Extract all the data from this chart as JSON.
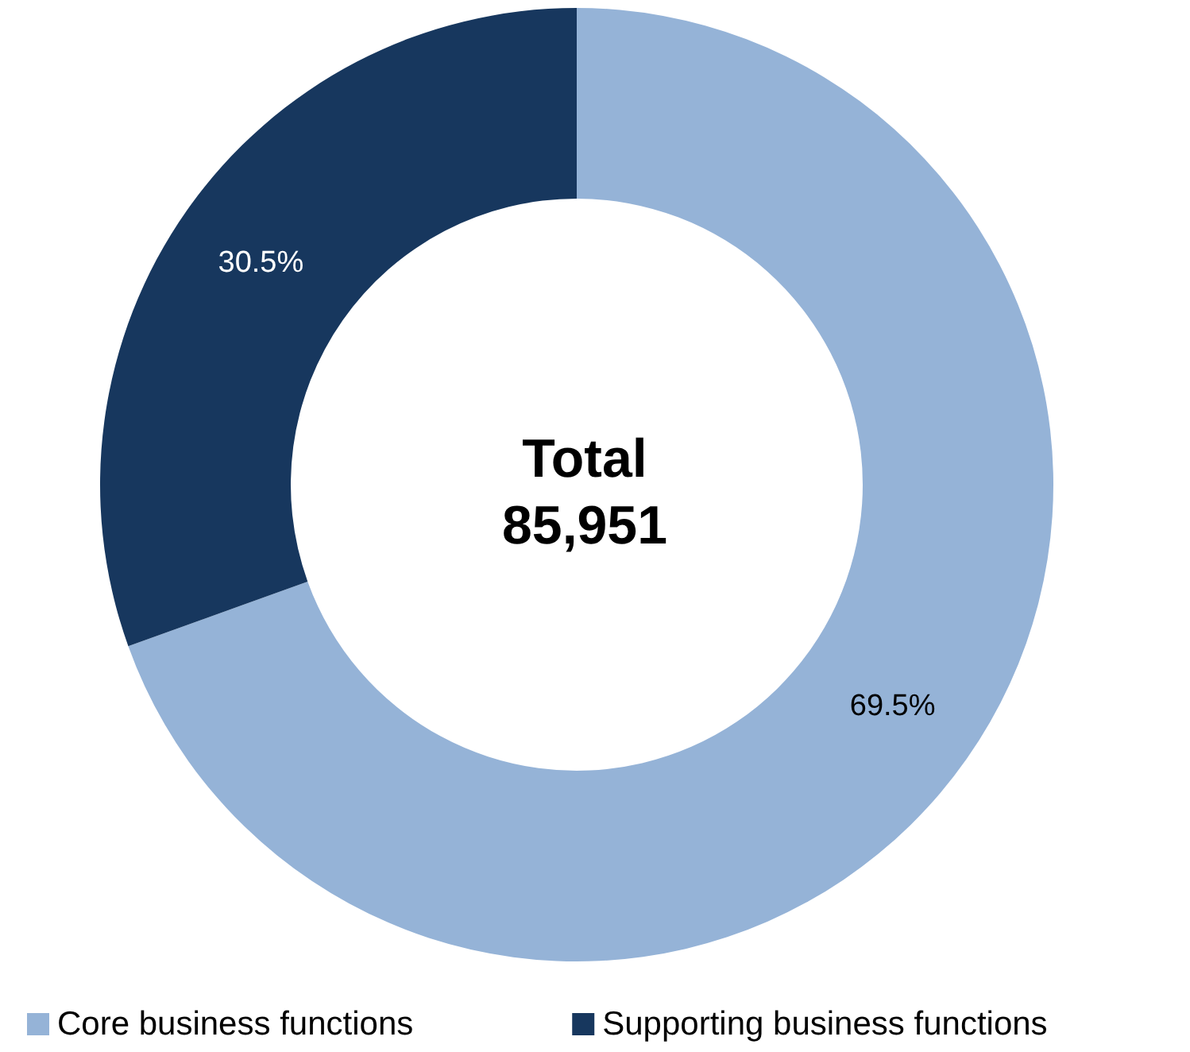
{
  "chart_data": {
    "type": "donut",
    "categories": [
      "Core business functions",
      "Supporting business functions"
    ],
    "values": [
      69.5,
      30.5
    ],
    "value_labels": [
      "69.5%",
      "30.5%"
    ],
    "colors": [
      "#95b3d7",
      "#17375e"
    ],
    "annotations": [
      "Total\n85,951"
    ],
    "legend": "bottom"
  }
}
